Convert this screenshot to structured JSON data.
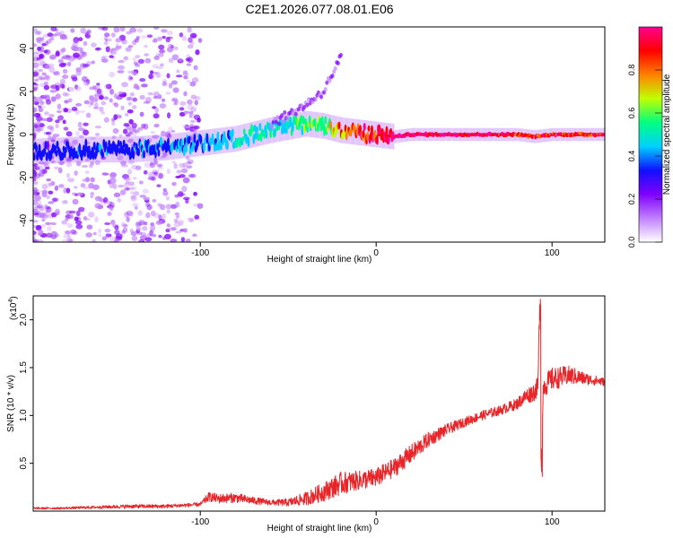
{
  "figure_title": "C2E1.2026.077.08.01.E06",
  "colors": {
    "snr_line": "#e8262a",
    "colormap": [
      "#ffffff",
      "#c080ff",
      "#8000ff",
      "#1010ff",
      "#00d0ff",
      "#00ff80",
      "#c0ff00",
      "#ff8000",
      "#ff0000",
      "#ff0090"
    ]
  },
  "chart_data": [
    {
      "type": "heatmap",
      "title": "",
      "xlabel": "Height of straight line (km)",
      "ylabel": "Frequency (Hz)",
      "xlim": [
        -195,
        130
      ],
      "ylim": [
        -50,
        50
      ],
      "xticks": [
        -100,
        0,
        100
      ],
      "xtick_labels": [
        "-100",
        "0",
        "100"
      ],
      "yticks": [
        40,
        20,
        0,
        -20,
        -40
      ],
      "ytick_labels": [
        "40",
        "20",
        "0",
        "-20",
        "-40"
      ],
      "colorbar": {
        "label": "Normalized spectral amplitude",
        "range": [
          0,
          1
        ],
        "ticks": [
          0.0,
          0.2,
          0.4,
          0.6,
          0.8
        ],
        "tick_labels": [
          "0.0",
          "0.2",
          "0.4",
          "0.6",
          "0.8"
        ]
      },
      "ridge": {
        "description": "dominant spectral trace",
        "x": [
          -195,
          -170,
          -140,
          -120,
          -100,
          -80,
          -60,
          -40,
          -30,
          -20,
          -10,
          0,
          10,
          20,
          40,
          60,
          80,
          90,
          100,
          130
        ],
        "y": [
          -8,
          -7,
          -7,
          -6,
          -4,
          -2,
          2,
          5,
          4,
          2,
          1,
          0,
          -1,
          0,
          0,
          0,
          0,
          -1,
          0,
          0
        ],
        "amplitude": [
          0.3,
          0.35,
          0.35,
          0.35,
          0.4,
          0.45,
          0.5,
          0.55,
          0.6,
          0.75,
          0.85,
          0.9,
          0.95,
          0.98,
          0.98,
          0.98,
          0.92,
          0.85,
          0.9,
          0.9
        ]
      },
      "upper_branch": {
        "description": "faint rising feature",
        "x": [
          -60,
          -50,
          -40,
          -30,
          -25,
          -20
        ],
        "y": [
          5,
          9,
          14,
          20,
          28,
          36
        ]
      }
    },
    {
      "type": "line",
      "title": "",
      "xlabel": "Height of straight line (km)",
      "ylabel": "SNR (10 * v/v)",
      "y_multiplier": "(x10",
      "y_multiplier_exp": "4",
      "y_multiplier_close": ")",
      "xlim": [
        -195,
        130
      ],
      "ylim": [
        0,
        2.25
      ],
      "xticks": [
        -100,
        0,
        100
      ],
      "xtick_labels": [
        "-100",
        "0",
        "100"
      ],
      "yticks": [
        0.5,
        1.0,
        1.5,
        2.0
      ],
      "ytick_labels": [
        "0.5",
        "1.0",
        "1.5",
        "2.0"
      ],
      "series": [
        {
          "name": "SNR",
          "x": [
            -195,
            -180,
            -160,
            -140,
            -120,
            -110,
            -100,
            -95,
            -90,
            -80,
            -70,
            -60,
            -50,
            -40,
            -30,
            -20,
            -10,
            0,
            10,
            20,
            30,
            40,
            50,
            60,
            70,
            80,
            85,
            90,
            92,
            93,
            94,
            95,
            96,
            100,
            110,
            120,
            130
          ],
          "y": [
            0.03,
            0.03,
            0.04,
            0.05,
            0.05,
            0.06,
            0.07,
            0.15,
            0.13,
            0.14,
            0.11,
            0.09,
            0.09,
            0.13,
            0.2,
            0.29,
            0.32,
            0.35,
            0.45,
            0.6,
            0.75,
            0.85,
            0.93,
            1.0,
            1.05,
            1.12,
            1.2,
            1.25,
            1.3,
            2.22,
            0.35,
            1.3,
            1.32,
            1.38,
            1.42,
            1.38,
            1.35
          ],
          "noise_amplitude": [
            0.01,
            0.01,
            0.015,
            0.02,
            0.02,
            0.02,
            0.02,
            0.05,
            0.05,
            0.05,
            0.04,
            0.03,
            0.04,
            0.07,
            0.1,
            0.12,
            0.1,
            0.1,
            0.1,
            0.1,
            0.08,
            0.06,
            0.05,
            0.05,
            0.05,
            0.06,
            0.08,
            0.1,
            0.1,
            0.1,
            0.1,
            0.1,
            0.12,
            0.12,
            0.1,
            0.06,
            0.04
          ]
        }
      ]
    }
  ]
}
